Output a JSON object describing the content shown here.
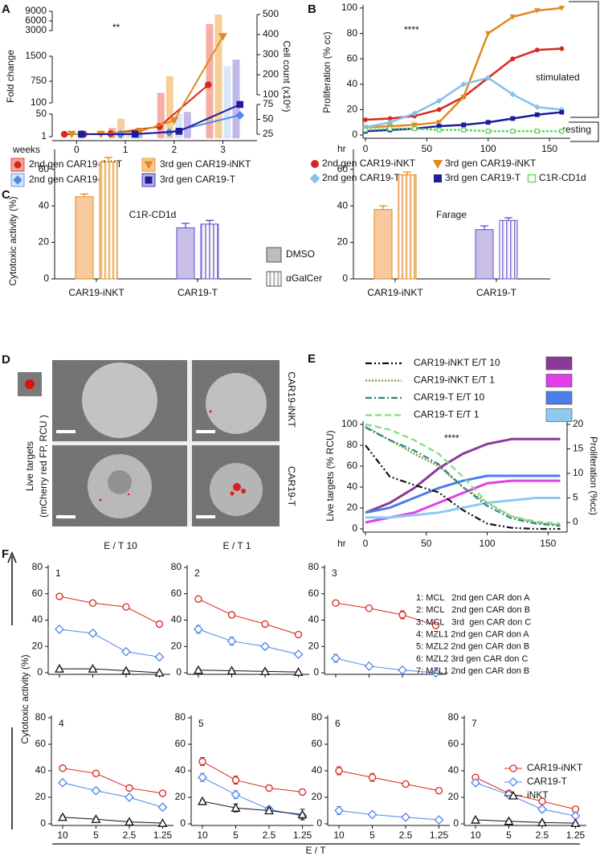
{
  "chart_data": [
    {
      "type": "bar_line",
      "panel": "A",
      "ylabel": "Fold change",
      "y2label": "Cell count (x10⁶)",
      "xlabel": "weeks",
      "annotation": "**",
      "xlim": [
        -0.5,
        3.7
      ],
      "xticks": [
        0,
        1,
        2,
        3
      ],
      "ysegments": [
        {
          "lim": [
            1,
            50
          ],
          "ticks": [
            1,
            50
          ]
        },
        {
          "lim": [
            100,
            1500
          ],
          "ticks": [
            100,
            750,
            1500
          ]
        },
        {
          "lim": [
            3000,
            9000
          ],
          "ticks": [
            3000,
            6000,
            9000
          ]
        }
      ],
      "y2segments": [
        {
          "lim": [
            25,
            75
          ],
          "ticks": [
            25,
            50,
            75
          ]
        },
        {
          "lim": [
            100,
            500
          ],
          "ticks": [
            100,
            200,
            300,
            400,
            500
          ]
        }
      ],
      "bar_x": [
        1,
        2,
        3
      ],
      "series": [
        {
          "name": "2nd gen CAR19-iNKT",
          "color": "#d9261c",
          "bar_color": "#f4a49b",
          "marker": "circle",
          "bar_values": [
            20,
            400,
            5000
          ],
          "x": [
            -0.25,
            0.15,
            0.7,
            1.7,
            2.7
          ],
          "values": [
            25,
            25,
            26,
            38,
            150
          ],
          "axis": "y2"
        },
        {
          "name": "3rd gen CAR19-iNKT",
          "color": "#e08a1e",
          "bar_color": "#f6c98c",
          "marker": "triangle-down",
          "bar_values": [
            40,
            900,
            8000
          ],
          "x": [
            -0.1,
            0.5,
            1.3,
            2,
            3
          ],
          "values": [
            25,
            25,
            30,
            48,
            390
          ],
          "axis": "y2"
        },
        {
          "name": "2nd gen CAR19-T",
          "color": "#4f86e8",
          "bar_color": "#d3e4f8",
          "marker": "diamond",
          "bar_values": [
            5,
            50,
            1200
          ],
          "x": [
            0.1,
            0.9,
            1.9,
            3.35
          ],
          "values": [
            25,
            25,
            28,
            57
          ],
          "axis": "y2"
        },
        {
          "name": "3rd gen CAR19-T",
          "color": "#1c1c9c",
          "bar_color": "#b9b1e4",
          "marker": "square",
          "bar_values": [
            5,
            60,
            1400
          ],
          "x": [
            0.1,
            1.2,
            2.1,
            3.35
          ],
          "values": [
            25,
            25,
            30,
            75
          ],
          "axis": "y2"
        }
      ]
    },
    {
      "type": "line",
      "panel": "B",
      "ylabel": "Proliferation (% cc)",
      "xlabel": "hr",
      "annotation": "****",
      "stimulated_label": "stimulated",
      "resting_label": "resting",
      "x": [
        0,
        20,
        40,
        60,
        80,
        100,
        120,
        140,
        160
      ],
      "xlim": [
        0,
        165
      ],
      "xticks": [
        0,
        50,
        100,
        150
      ],
      "ylim": [
        0,
        100
      ],
      "yticks": [
        0,
        20,
        40,
        60,
        80,
        100
      ],
      "series": [
        {
          "name": "2nd gen CAR19-iNKT",
          "color": "#d9261c",
          "marker": "circle",
          "values": [
            12,
            13,
            15,
            20,
            30,
            45,
            60,
            67,
            68
          ]
        },
        {
          "name": "3rd gen CAR19-iNKT",
          "color": "#e08a1e",
          "marker": "triangle-down",
          "values": [
            6,
            7,
            8,
            10,
            30,
            80,
            93,
            98,
            100
          ]
        },
        {
          "name": "2nd gen CAR19-T",
          "color": "#86c0ec",
          "marker": "diamond",
          "values": [
            6,
            10,
            17,
            27,
            40,
            45,
            32,
            22,
            20
          ]
        },
        {
          "name": "3rd gen CAR19-T",
          "color": "#1c1c9c",
          "marker": "square",
          "values": [
            3,
            4,
            5,
            7,
            8,
            10,
            13,
            16,
            18
          ]
        },
        {
          "name": "C1R-CD1d",
          "color": "#5fd35f",
          "marker": "open-square",
          "values": [
            4,
            5,
            5,
            4,
            4,
            3,
            3,
            3,
            3
          ]
        }
      ]
    },
    {
      "type": "grouped_bar_pair",
      "panel": "C",
      "ylabel": "Cytotoxic activity (%)",
      "ylim": [
        0,
        70
      ],
      "yticks": [
        0,
        20,
        40,
        60
      ],
      "categories": [
        "CAR19-iNKT",
        "CAR19-T"
      ],
      "colors": [
        "#f7c99c",
        "#c9bfe6"
      ],
      "edge_colors": [
        "#e08a1e",
        "#5a4fd0"
      ],
      "legend": [
        {
          "name": "DMSO",
          "pattern": "solid"
        },
        {
          "name": "αGalCer",
          "pattern": "hatched"
        }
      ],
      "groups": [
        {
          "title": "C1R-CD1d",
          "values": [
            [
              45,
              64
            ],
            [
              28,
              30
            ]
          ],
          "errors": [
            [
              1.5,
              2.5
            ],
            [
              2.5,
              2
            ]
          ]
        },
        {
          "title": "Farage",
          "values": [
            [
              38,
              57
            ],
            [
              27,
              32
            ]
          ],
          "errors": [
            [
              2,
              1.5
            ],
            [
              2,
              1.5
            ]
          ]
        }
      ]
    },
    {
      "type": "dual_line",
      "panel": "E",
      "ylabel": "Live targets (% RCU)",
      "y2label": "Proliferation (%cc)",
      "xlabel": "hr",
      "annotation": "****",
      "x": [
        0,
        20,
        40,
        60,
        80,
        100,
        120,
        140,
        160
      ],
      "xlim": [
        0,
        163
      ],
      "xticks": [
        0,
        50,
        100,
        150
      ],
      "ylim": [
        0,
        100
      ],
      "yticks": [
        0,
        20,
        40,
        60,
        80,
        100
      ],
      "y2lim": [
        0,
        20
      ],
      "y2ticks": [
        0,
        5,
        10,
        15,
        20
      ],
      "series": [
        {
          "name": "CAR19-iNKT E/T 10",
          "line_color": "#111111",
          "dash": "dashdotdot",
          "values": [
            80,
            50,
            42,
            35,
            18,
            5,
            1,
            0,
            0
          ],
          "color": "#8b3a9c",
          "y2_values": [
            2,
            4,
            7,
            11,
            14,
            16,
            17,
            17,
            17
          ]
        },
        {
          "name": "CAR19-iNKT E/T 1",
          "line_color": "#8a8a2a",
          "dash": "dotted",
          "values": [
            98,
            85,
            72,
            60,
            40,
            25,
            12,
            6,
            4
          ],
          "color": "#e33ee8",
          "y2_values": [
            0,
            1,
            2,
            4,
            6,
            8,
            8.5,
            8.5,
            8.5
          ]
        },
        {
          "name": "CAR19-T E/T 10",
          "line_color": "#2a8a8a",
          "dash": "dashdot",
          "values": [
            97,
            85,
            75,
            62,
            40,
            22,
            10,
            5,
            3
          ],
          "color": "#4d7de8",
          "y2_values": [
            2,
            3,
            5,
            7,
            8.5,
            9.5,
            9.5,
            9.5,
            9.5
          ]
        },
        {
          "name": "CAR19-T E/T 1",
          "line_color": "#7ee07e",
          "dash": "dashed",
          "values": [
            100,
            95,
            85,
            72,
            50,
            25,
            12,
            7,
            5
          ],
          "color": "#8ec9f2",
          "y2_values": [
            1,
            1,
            1.5,
            2,
            3,
            4,
            4.5,
            5,
            5
          ]
        }
      ]
    },
    {
      "type": "small_multiples_line",
      "panel": "F",
      "ylabel": "Cytotoxic activity (%)",
      "xlabel": "E / T",
      "categories": [
        "10",
        "5",
        "2.5",
        "1.25"
      ],
      "ylim": [
        0,
        80
      ],
      "yticks": [
        0,
        20,
        40,
        60,
        80
      ],
      "series": [
        {
          "name": "CAR19-iNKT",
          "color": "#d9261c",
          "marker": "open-circle"
        },
        {
          "name": "CAR19-T",
          "color": "#4f86e8",
          "marker": "open-diamond"
        },
        {
          "name": "iNKT",
          "color": "#111111",
          "marker": "open-triangle"
        }
      ],
      "notes": [
        "1: MCL   2nd gen CAR don A",
        "2: MCL   2nd gen CAR don B",
        "3: MCL   3rd  gen CAR don C",
        "4: MZL1 2nd gen CAR don A",
        "5: MZL2 2nd gen CAR don B",
        "6: MZL2 3rd gen CAR don C",
        "7: MZL1 2nd gen CAR don B"
      ],
      "panels": [
        {
          "label": "1",
          "values": [
            [
              58,
              53,
              50,
              37
            ],
            [
              33,
              30,
              16,
              12
            ],
            [
              3,
              3,
              1.5,
              0
            ]
          ],
          "errors": [
            [
              1,
              1,
              1,
              2
            ],
            [
              1,
              1,
              1,
              1
            ],
            [
              1,
              1,
              1,
              0.5
            ]
          ]
        },
        {
          "label": "2",
          "values": [
            [
              56,
              44,
              37,
              29
            ],
            [
              33,
              24,
              20,
              14
            ],
            [
              2,
              1.5,
              1,
              0.5
            ]
          ],
          "errors": [
            [
              1,
              1,
              1,
              1
            ],
            [
              3,
              3,
              2,
              1
            ],
            [
              1,
              1,
              1,
              0.5
            ]
          ]
        },
        {
          "label": "3",
          "values": [
            [
              53,
              49,
              44,
              36
            ],
            [
              11,
              5,
              2,
              0
            ],
            [
              null,
              null,
              null,
              null
            ]
          ],
          "errors": [
            [
              1,
              1,
              3,
              2
            ],
            [
              3,
              1,
              0.5,
              0
            ],
            [
              null,
              null,
              null,
              null
            ]
          ]
        },
        {
          "label": "4",
          "values": [
            [
              42,
              38,
              27,
              23
            ],
            [
              31,
              25,
              20,
              12.5
            ],
            [
              5,
              3.5,
              1.5,
              0.5
            ]
          ],
          "errors": [
            [
              1,
              1,
              1,
              1
            ],
            [
              1,
              1,
              1,
              1
            ],
            [
              1,
              1,
              1,
              0.5
            ]
          ]
        },
        {
          "label": "5",
          "values": [
            [
              47,
              33,
              27,
              24
            ],
            [
              35,
              22,
              11,
              6
            ],
            [
              17,
              12,
              10,
              7
            ]
          ],
          "errors": [
            [
              3,
              3,
              1,
              2
            ],
            [
              3,
              3,
              2,
              2
            ],
            [
              1,
              3,
              2,
              4
            ]
          ]
        },
        {
          "label": "6",
          "values": [
            [
              40,
              35,
              30,
              25
            ],
            [
              10,
              7,
              5,
              3
            ],
            [
              null,
              null,
              null,
              null
            ]
          ],
          "errors": [
            [
              3,
              3,
              1,
              2
            ],
            [
              3,
              2,
              0.5,
              0.5
            ],
            [
              null,
              null,
              null,
              null
            ]
          ]
        },
        {
          "label": "7",
          "values": [
            [
              35,
              23,
              17,
              11
            ],
            [
              31,
              22,
              11,
              6
            ],
            [
              3,
              2,
              1,
              0.5
            ]
          ],
          "errors": [
            [
              1,
              1,
              1,
              1
            ],
            [
              1,
              1,
              2,
              2
            ],
            [
              1,
              1,
              1,
              0.5
            ]
          ]
        }
      ]
    }
  ],
  "panel_d": {
    "panel": "D",
    "ylabel": [
      "Live targets",
      "(mCherry red FP, RCU )"
    ],
    "rows": [
      "CAR19-iNKT",
      "CAR19-T"
    ],
    "columns": [
      "E / T 10",
      "E / T 1"
    ]
  }
}
